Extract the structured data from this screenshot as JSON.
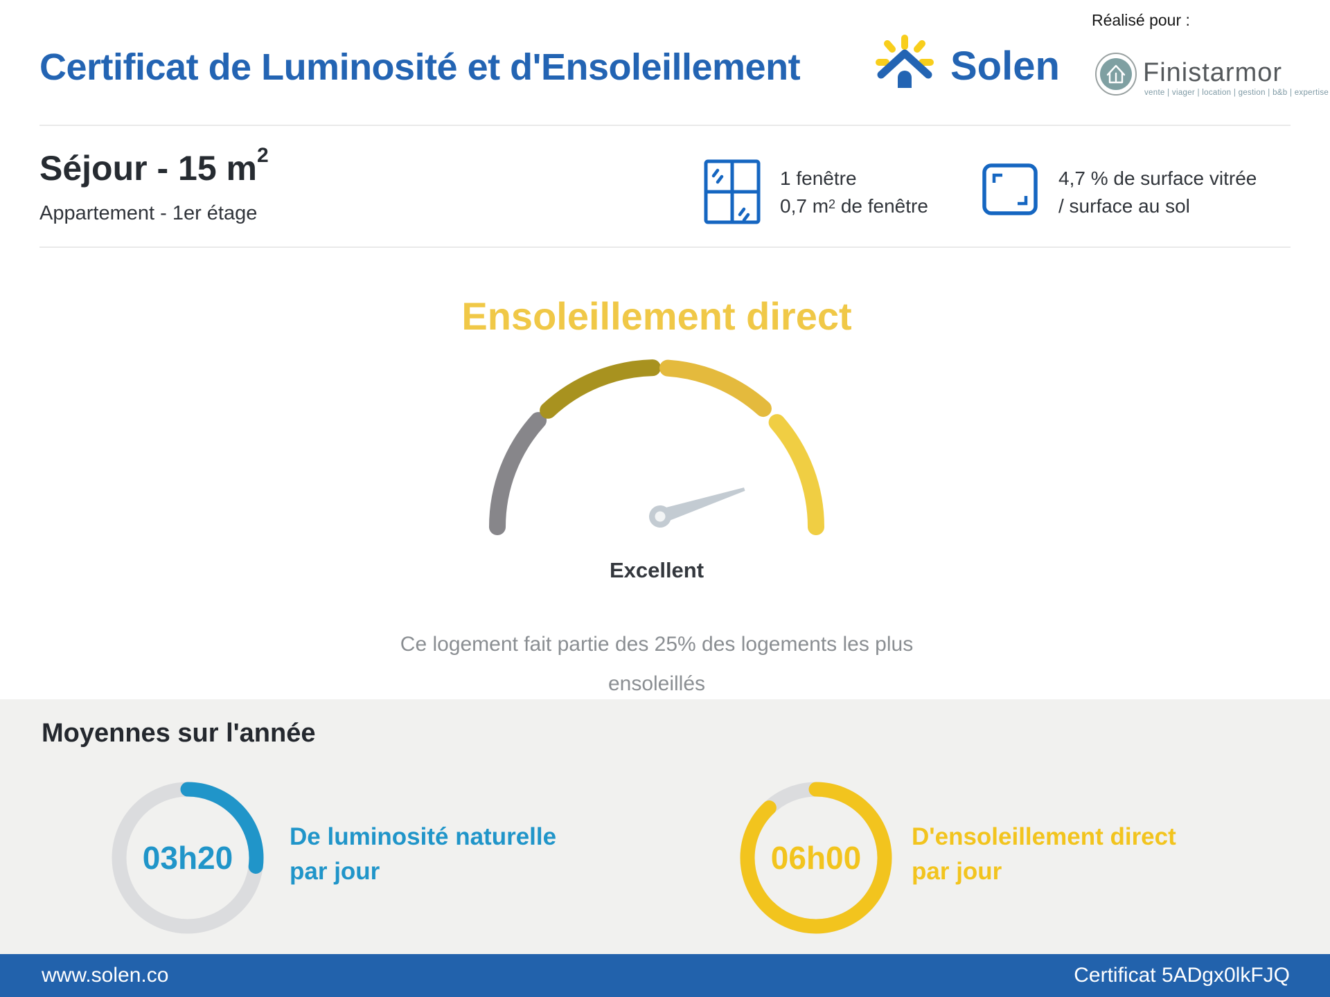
{
  "header": {
    "title": "Certificat de Luminosité et d'Ensoleillement",
    "brand": "Solen",
    "realise_pour": "Réalisé pour :",
    "partner_name": "Finistarmor",
    "partner_tagline": "vente | viager | location | gestion | b&b | expertise"
  },
  "room": {
    "name": "Séjour - 15 m",
    "name_sup": "2",
    "subtitle": "Appartement - 1er étage",
    "window_count": "1 fenêtre",
    "window_area_pre": "0,7 m",
    "window_area_sup": "2",
    "window_area_post": " de fenêtre",
    "glazing_line1": "4,7 % de surface vitrée",
    "glazing_line2": "/ surface au sol"
  },
  "gauge": {
    "title": "Ensoleillement direct",
    "verdict": "Excellent",
    "description_line1": "Ce logement fait partie des 25% des logements les plus",
    "description_line2": "ensoleillés",
    "needle_angle_deg": 18,
    "needle_color": "#C3CBD2",
    "segments": [
      {
        "name": "segment-low",
        "color": "#87868A"
      },
      {
        "name": "segment-medium",
        "color": "#A8921F"
      },
      {
        "name": "segment-good",
        "color": "#E4BA3D"
      },
      {
        "name": "segment-excellent",
        "color": "#F0CE43"
      }
    ]
  },
  "averages": {
    "heading": "Moyennes sur l'année",
    "items": [
      {
        "value": "03h20",
        "label_line1": "De luminosité naturelle",
        "label_line2": "par jour",
        "color": "#2095C9",
        "percent": 27
      },
      {
        "value": "06h00",
        "label_line1": "D'ensoleillement direct",
        "label_line2": "par jour",
        "color": "#F2C41E",
        "percent": 88
      }
    ]
  },
  "footer": {
    "website": "www.solen.co",
    "certificate": "Certificat 5ADgx0lkFJQ"
  }
}
